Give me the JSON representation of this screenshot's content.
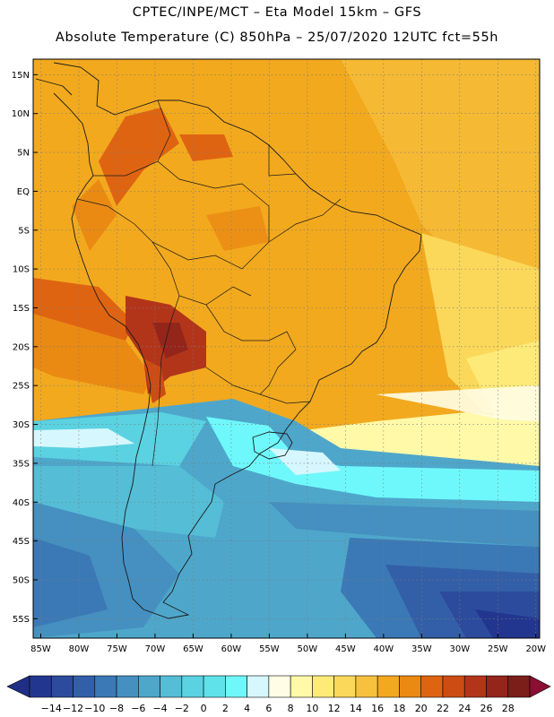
{
  "title": {
    "line1": "CPTEC/INPE/MCT –  Eta Model 15km – GFS",
    "line2": "Absolute Temperature (C) 850hPa – 25/07/2020 12UTC fct=55h"
  },
  "map": {
    "lat_ticks": [
      "15N",
      "10N",
      "5N",
      "EQ",
      "5S",
      "10S",
      "15S",
      "20S",
      "25S",
      "30S",
      "35S",
      "40S",
      "45S",
      "50S",
      "55S"
    ],
    "lon_ticks": [
      "85W",
      "80W",
      "75W",
      "70W",
      "65W",
      "60W",
      "55W",
      "50W",
      "45W",
      "40W",
      "35W",
      "30W",
      "25W",
      "20W"
    ],
    "lat_range": [
      17,
      -57.5
    ],
    "lon_range": [
      -86,
      -19.5
    ]
  },
  "colorbar": {
    "labels": [
      "-14",
      "-12",
      "-10",
      "-8",
      "-6",
      "-4",
      "-2",
      "0",
      "2",
      "4",
      "6",
      "8",
      "10",
      "12",
      "14",
      "16",
      "18",
      "20",
      "22",
      "24",
      "26",
      "28"
    ],
    "colors": [
      "#23368f",
      "#2c4b9c",
      "#335fa8",
      "#3b79b6",
      "#4590c0",
      "#4ea7cb",
      "#55bdd6",
      "#5ad2e1",
      "#60e2ea",
      "#6ff8fb",
      "#d6f7fd",
      "#fffde6",
      "#fff9a8",
      "#fdea79",
      "#fbd85a",
      "#f7c13d",
      "#f2a91e",
      "#ea8a13",
      "#df6412",
      "#cd4c13",
      "#b2351a",
      "#93251a",
      "#7b1d19"
    ],
    "arrow_left": "#1f2f86",
    "arrow_right": "#8a0f33"
  }
}
